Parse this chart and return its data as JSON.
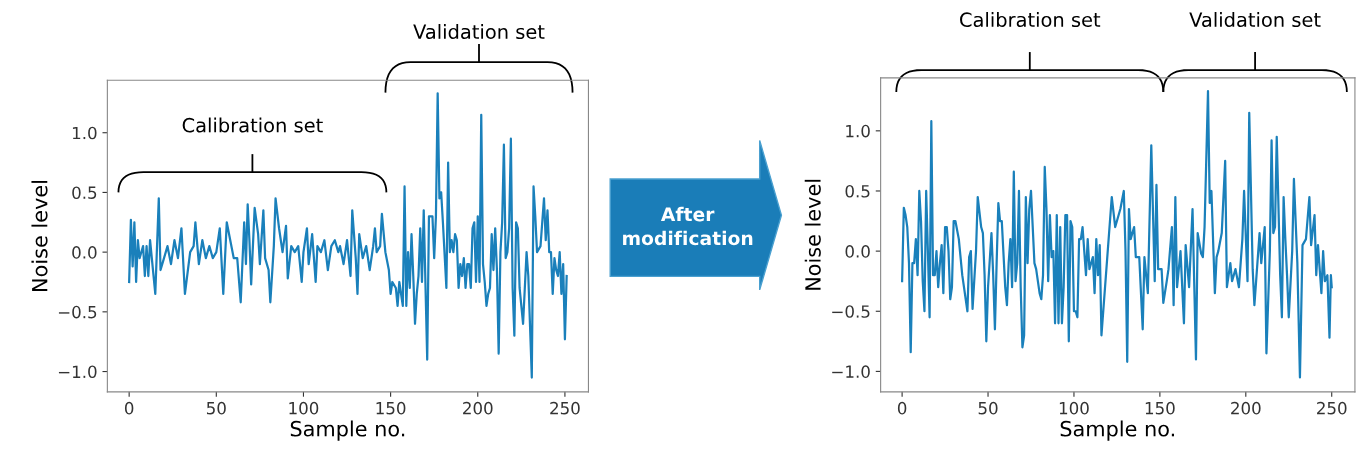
{
  "chart_data": [
    {
      "type": "line",
      "xlabel": "Sample no.",
      "ylabel": "Noise level",
      "grid": false,
      "legend": false,
      "marker": "none",
      "line_style": "solid",
      "xlim": [
        -12.5,
        263.5
      ],
      "ylim": [
        -1.17,
        1.44
      ],
      "xticks": [
        0,
        50,
        100,
        150,
        200,
        250
      ],
      "yticks": [
        {
          "value": -1.0,
          "label": "−1.0"
        },
        {
          "value": -0.5,
          "label": "−0.5"
        },
        {
          "value": 0.0,
          "label": "0.0"
        },
        {
          "value": 0.5,
          "label": "0.5"
        },
        {
          "value": 1.0,
          "label": "1.0"
        }
      ],
      "annotations": [
        "Calibration set",
        "Validation set",
        "After\nmodification"
      ],
      "series": [
        {
          "color": "#1a80bb",
          "x": [
            0,
            1,
            2,
            3,
            4,
            5,
            6,
            8,
            9,
            10,
            11,
            12,
            13,
            15,
            17,
            18,
            20,
            22,
            24,
            26,
            28,
            30,
            32,
            35,
            37,
            38,
            40,
            42,
            44,
            46,
            48,
            50,
            52,
            54,
            56,
            58,
            60,
            62,
            64,
            66,
            67,
            68,
            69,
            70,
            72,
            74,
            75,
            77,
            78,
            80,
            81,
            83,
            84,
            86,
            88,
            90,
            91,
            93,
            95,
            97,
            99,
            100,
            102,
            103,
            105,
            107,
            108,
            110,
            112,
            114,
            116,
            118,
            120,
            121,
            123,
            125,
            127,
            128,
            130,
            131,
            132,
            134,
            136,
            138,
            140,
            141,
            142,
            144,
            145,
            147,
            149,
            150,
            151,
            153,
            154,
            155,
            157,
            158,
            159,
            160,
            161,
            162,
            163,
            164,
            165,
            166,
            167,
            168,
            169,
            171,
            172,
            174,
            175,
            176,
            177,
            178,
            179,
            180,
            182,
            183,
            184,
            185,
            186,
            187,
            188,
            189,
            190,
            191,
            192,
            193,
            194,
            195,
            196,
            197,
            198,
            199,
            200,
            201,
            202,
            203,
            204,
            205,
            206,
            207,
            208,
            209,
            210,
            211,
            212,
            213,
            214,
            215,
            216,
            217,
            218,
            219,
            220,
            221,
            222,
            223,
            224,
            225,
            226,
            228,
            229,
            231,
            232,
            233,
            234,
            236,
            238,
            239,
            240,
            241,
            242,
            243,
            244,
            245,
            246,
            247,
            248,
            249,
            250,
            251
          ],
          "values": [
            -0.25,
            0.27,
            -0.12,
            0.25,
            -0.25,
            0.1,
            -0.05,
            0.05,
            -0.2,
            0.05,
            -0.2,
            0.1,
            -0.05,
            -0.35,
            0.45,
            -0.15,
            -0.05,
            0.05,
            -0.1,
            0.1,
            -0.05,
            0.2,
            -0.35,
            0.0,
            0.05,
            0.25,
            -0.1,
            0.1,
            -0.05,
            0.05,
            -0.05,
            0.0,
            0.2,
            -0.35,
            0.25,
            0.1,
            -0.05,
            -0.05,
            -0.42,
            0.25,
            -0.1,
            0.4,
            0.1,
            -0.27,
            0.37,
            0.15,
            -0.1,
            0.35,
            -0.05,
            -0.15,
            -0.42,
            0.05,
            0.45,
            0.2,
            0.0,
            0.22,
            -0.22,
            0.05,
            0.0,
            0.05,
            -0.25,
            0.0,
            0.2,
            -0.1,
            0.15,
            -0.25,
            0.05,
            0.0,
            0.1,
            -0.15,
            0.05,
            0.1,
            0.0,
            0.05,
            -0.1,
            0.1,
            -0.2,
            0.35,
            -0.05,
            -0.35,
            0.15,
            -0.05,
            0.05,
            -0.15,
            0.05,
            0.2,
            0.0,
            0.05,
            0.32,
            0.0,
            -0.15,
            -0.35,
            -0.25,
            -0.3,
            -0.45,
            -0.25,
            -0.45,
            0.55,
            -0.45,
            0.0,
            -0.3,
            0.15,
            -0.2,
            -0.6,
            -0.35,
            -0.2,
            0.2,
            -0.25,
            0.35,
            -0.9,
            0.3,
            0.3,
            -0.05,
            0.3,
            1.33,
            0.45,
            0.5,
            0.25,
            -0.3,
            0.75,
            0.0,
            0.1,
            0.0,
            0.15,
            0.1,
            -0.3,
            -0.1,
            -0.2,
            -0.05,
            -0.3,
            -0.1,
            -0.1,
            -0.3,
            0.2,
            0.25,
            -0.25,
            0.3,
            -0.25,
            1.15,
            -0.1,
            -0.25,
            -0.45,
            -0.35,
            -0.3,
            0.15,
            -0.15,
            0.2,
            -0.15,
            -0.85,
            0.0,
            0.25,
            0.9,
            -0.05,
            0.0,
            0.2,
            0.95,
            -0.3,
            -0.7,
            0.25,
            0.2,
            -0.3,
            -0.45,
            -0.6,
            0.0,
            -0.2,
            -1.05,
            0.55,
            0.3,
            0.0,
            0.05,
            0.45,
            0.1,
            0.35,
            0.0,
            0.0,
            -0.35,
            -0.05,
            -0.15,
            -0.2,
            0.0,
            -0.35,
            -0.1,
            -0.73,
            -0.2
          ]
        }
      ]
    },
    {
      "type": "line",
      "xlabel": "Sample no.",
      "ylabel": "Noise level",
      "grid": false,
      "legend": false,
      "marker": "none",
      "line_style": "solid",
      "xlim": [
        -12.5,
        263.5
      ],
      "ylim": [
        -1.17,
        1.44
      ],
      "xticks": [
        0,
        50,
        100,
        150,
        200,
        250
      ],
      "yticks": [
        {
          "value": -1.0,
          "label": "−1.0"
        },
        {
          "value": -0.5,
          "label": "−0.5"
        },
        {
          "value": 0.0,
          "label": "0.0"
        },
        {
          "value": 0.5,
          "label": "0.5"
        },
        {
          "value": 1.0,
          "label": "1.0"
        }
      ],
      "annotations": [
        "Calibration set",
        "Validation set"
      ],
      "series": [
        {
          "color": "#1a80bb",
          "x": [
            0,
            1,
            2,
            3,
            4,
            5,
            6,
            7,
            8,
            9,
            10,
            11,
            12,
            13,
            14,
            15,
            16,
            17,
            18,
            19,
            20,
            21,
            22,
            23,
            24,
            25,
            26,
            27,
            28,
            29,
            30,
            31,
            33,
            35,
            36,
            38,
            39,
            40,
            41,
            43,
            44,
            46,
            47,
            48,
            49,
            50,
            52,
            53,
            54,
            55,
            56,
            57,
            58,
            60,
            61,
            62,
            63,
            64,
            65,
            66,
            67,
            68,
            69,
            70,
            71,
            72,
            73,
            74,
            75,
            76,
            77,
            78,
            80,
            81,
            82,
            83,
            84,
            85,
            86,
            87,
            88,
            89,
            90,
            91,
            92,
            93,
            94,
            95,
            96,
            97,
            98,
            99,
            100,
            101,
            102,
            103,
            104,
            105,
            106,
            107,
            108,
            109,
            110,
            111,
            112,
            113,
            114,
            115,
            116,
            122,
            124,
            127,
            129,
            130,
            131,
            132,
            133,
            135,
            136,
            138,
            140,
            141,
            143,
            145,
            147,
            148,
            149,
            151,
            152,
            154,
            155,
            157,
            158,
            159,
            160,
            162,
            164,
            165,
            167,
            169,
            171,
            172,
            174,
            175,
            176,
            178,
            179,
            180,
            182,
            183,
            184,
            186,
            188,
            189,
            191,
            192,
            194,
            196,
            198,
            199,
            201,
            202,
            204,
            205,
            206,
            208,
            209,
            211,
            212,
            214,
            215,
            216,
            217,
            218,
            220,
            221,
            222,
            223,
            224,
            225,
            227,
            228,
            230,
            231.5,
            233,
            235,
            237,
            238,
            240,
            241,
            242,
            244,
            245,
            246,
            247.5,
            248.7,
            249.5,
            250
          ],
          "values": [
            -0.25,
            0.36,
            0.3,
            0.2,
            -0.1,
            -0.84,
            -0.1,
            -0.1,
            0.1,
            -0.2,
            0.5,
            0.25,
            -0.25,
            -0.5,
            0.5,
            0.0,
            -0.55,
            1.08,
            -0.2,
            -0.2,
            0.0,
            -0.3,
            -0.1,
            0.05,
            -0.35,
            0.2,
            0.2,
            0.0,
            -0.4,
            -0.3,
            0.25,
            0.25,
            0.1,
            -0.2,
            -0.3,
            -0.5,
            -0.05,
            0.0,
            -0.48,
            0.0,
            0.45,
            0.2,
            0.15,
            -0.2,
            -0.75,
            -0.3,
            0.15,
            -0.2,
            -0.65,
            -0.1,
            0.4,
            0.25,
            0.25,
            -0.3,
            -0.45,
            -0.1,
            0.1,
            -0.3,
            0.66,
            -0.25,
            -0.1,
            0.5,
            -0.3,
            -0.8,
            -0.7,
            0.45,
            -0.1,
            0.35,
            0.5,
            0.2,
            -0.1,
            -0.15,
            -0.35,
            -0.4,
            -0.2,
            0.7,
            0.35,
            -0.25,
            0.3,
            -0.05,
            0.0,
            -0.6,
            0.3,
            -0.6,
            0.2,
            -0.6,
            -0.3,
            0.3,
            0.3,
            -0.75,
            0.25,
            0.2,
            -0.5,
            -0.5,
            -0.55,
            0.1,
            0.1,
            0.2,
            0.0,
            -0.2,
            0.1,
            -0.15,
            -0.1,
            -0.05,
            -0.35,
            0.1,
            -0.2,
            0.05,
            -0.7,
            0.45,
            0.2,
            0.35,
            0.5,
            0.0,
            -0.92,
            0.35,
            0.1,
            0.2,
            -0.05,
            -0.05,
            -0.65,
            -0.05,
            -0.35,
            0.88,
            -0.25,
            0.55,
            -0.15,
            -0.15,
            -0.43,
            -0.25,
            -0.15,
            0.2,
            -0.45,
            0.45,
            -0.3,
            0.0,
            -0.6,
            0.05,
            -0.3,
            0.35,
            -0.9,
            0.15,
            -0.02,
            -0.05,
            0.2,
            1.33,
            0.4,
            0.5,
            -0.35,
            -0.05,
            0.0,
            0.15,
            0.75,
            -0.3,
            -0.1,
            -0.25,
            -0.15,
            -0.3,
            0.1,
            0.5,
            -0.25,
            1.15,
            -0.15,
            -0.45,
            -0.25,
            0.15,
            -0.1,
            0.2,
            -0.85,
            0.0,
            0.92,
            0.15,
            0.2,
            0.95,
            -0.2,
            -0.55,
            0.45,
            0.1,
            -0.2,
            -0.55,
            0.0,
            0.6,
            -0.1,
            -1.05,
            0.05,
            0.1,
            0.45,
            0.05,
            0.3,
            -0.2,
            0.05,
            -0.35,
            0.0,
            -0.25,
            -0.2,
            -0.72,
            -0.2,
            -0.3
          ]
        }
      ]
    }
  ]
}
